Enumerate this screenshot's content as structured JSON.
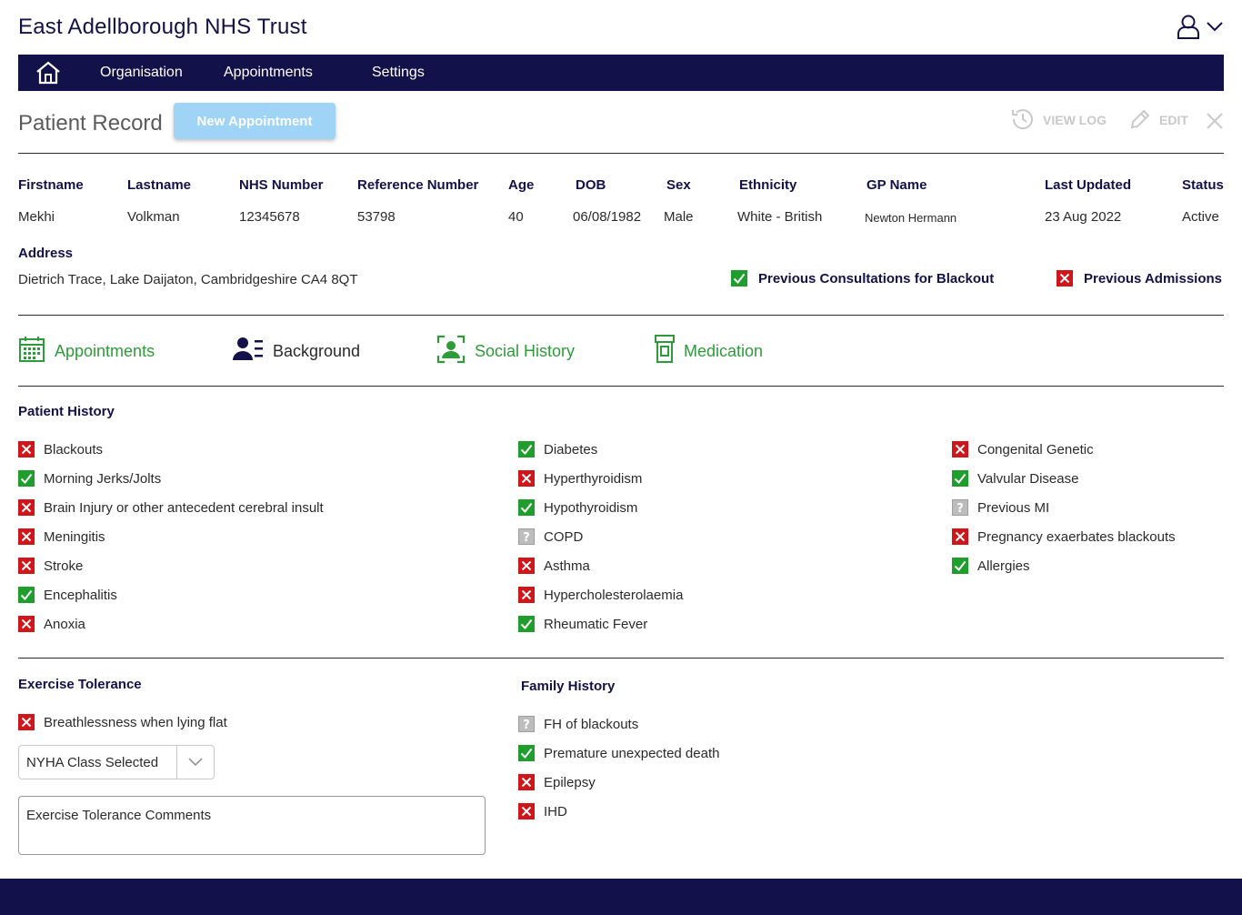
{
  "org_title": "East Adellborough NHS Trust",
  "nav": {
    "items": [
      "Organisation",
      "Appointments",
      "Settings"
    ]
  },
  "page": {
    "title": "Patient Record",
    "new_appointment": "New Appointment",
    "view_log": "VIEW LOG",
    "edit": "EDIT"
  },
  "patient": {
    "headers": [
      "Firstname",
      "Lastname",
      "NHS Number",
      "Reference Number",
      "Age",
      "DOB",
      "Sex",
      "Ethnicity",
      "GP Name",
      "Last Updated",
      "Status"
    ],
    "values": [
      "Mekhi",
      "Volkman",
      "12345678",
      "53798",
      "40",
      "06/08/1982",
      "Male",
      "White - British",
      "Newton Hermann",
      "23 Aug 2022",
      "Active"
    ],
    "address_label": "Address",
    "address": "Dietrich Trace, Lake Daijaton, Cambridgeshire CA4 8QT",
    "flags": [
      {
        "label": "Previous Consultations for Blackout",
        "state": "yes"
      },
      {
        "label": "Previous Admissions",
        "state": "no"
      }
    ]
  },
  "tabs": [
    {
      "label": "Appointments",
      "icon": "calendar-icon",
      "color": "#2e9b3a"
    },
    {
      "label": "Background",
      "icon": "user-list-icon",
      "color": "#13114a"
    },
    {
      "label": "Social History",
      "icon": "user-frame-icon",
      "color": "#2e9b3a"
    },
    {
      "label": "Medication",
      "icon": "pill-bottle-icon",
      "color": "#2e9b3a"
    }
  ],
  "patient_history": {
    "title": "Patient History",
    "col1": [
      {
        "label": "Blackouts",
        "state": "no"
      },
      {
        "label": "Morning Jerks/Jolts",
        "state": "yes"
      },
      {
        "label": "Brain Injury or other antecedent cerebral insult",
        "state": "no"
      },
      {
        "label": "Meningitis",
        "state": "no"
      },
      {
        "label": "Stroke",
        "state": "no"
      },
      {
        "label": "Encephalitis",
        "state": "yes"
      },
      {
        "label": "Anoxia",
        "state": "no"
      }
    ],
    "col2": [
      {
        "label": "Diabetes",
        "state": "yes"
      },
      {
        "label": "Hyperthyroidism",
        "state": "no"
      },
      {
        "label": "Hypothyroidism",
        "state": "yes"
      },
      {
        "label": "COPD",
        "state": "unknown"
      },
      {
        "label": "Asthma",
        "state": "no"
      },
      {
        "label": "Hypercholesterolaemia",
        "state": "no"
      },
      {
        "label": "Rheumatic Fever",
        "state": "yes"
      }
    ],
    "col3": [
      {
        "label": "Congenital Genetic",
        "state": "no"
      },
      {
        "label": "Valvular Disease",
        "state": "yes"
      },
      {
        "label": "Previous MI",
        "state": "unknown"
      },
      {
        "label": "Pregnancy exaerbates blackouts",
        "state": "no"
      },
      {
        "label": "Allergies",
        "state": "yes"
      }
    ]
  },
  "exercise_tolerance": {
    "title": "Exercise Tolerance",
    "items": [
      {
        "label": "Breathlessness when lying flat",
        "state": "no"
      }
    ],
    "nyha_select": "NYHA Class Selected",
    "comments_placeholder": "Exercise Tolerance Comments"
  },
  "family_history": {
    "title": "Family History",
    "items": [
      {
        "label": "FH of blackouts",
        "state": "unknown"
      },
      {
        "label": "Premature unexpected death",
        "state": "yes"
      },
      {
        "label": "Epilepsy",
        "state": "no"
      },
      {
        "label": "IHD",
        "state": "no"
      }
    ]
  },
  "colors": {
    "navy": "#13114a",
    "green": "#1f9e2e",
    "red": "#d0151b",
    "grey": "#bdbdbd",
    "button": "#9fd4f7"
  }
}
